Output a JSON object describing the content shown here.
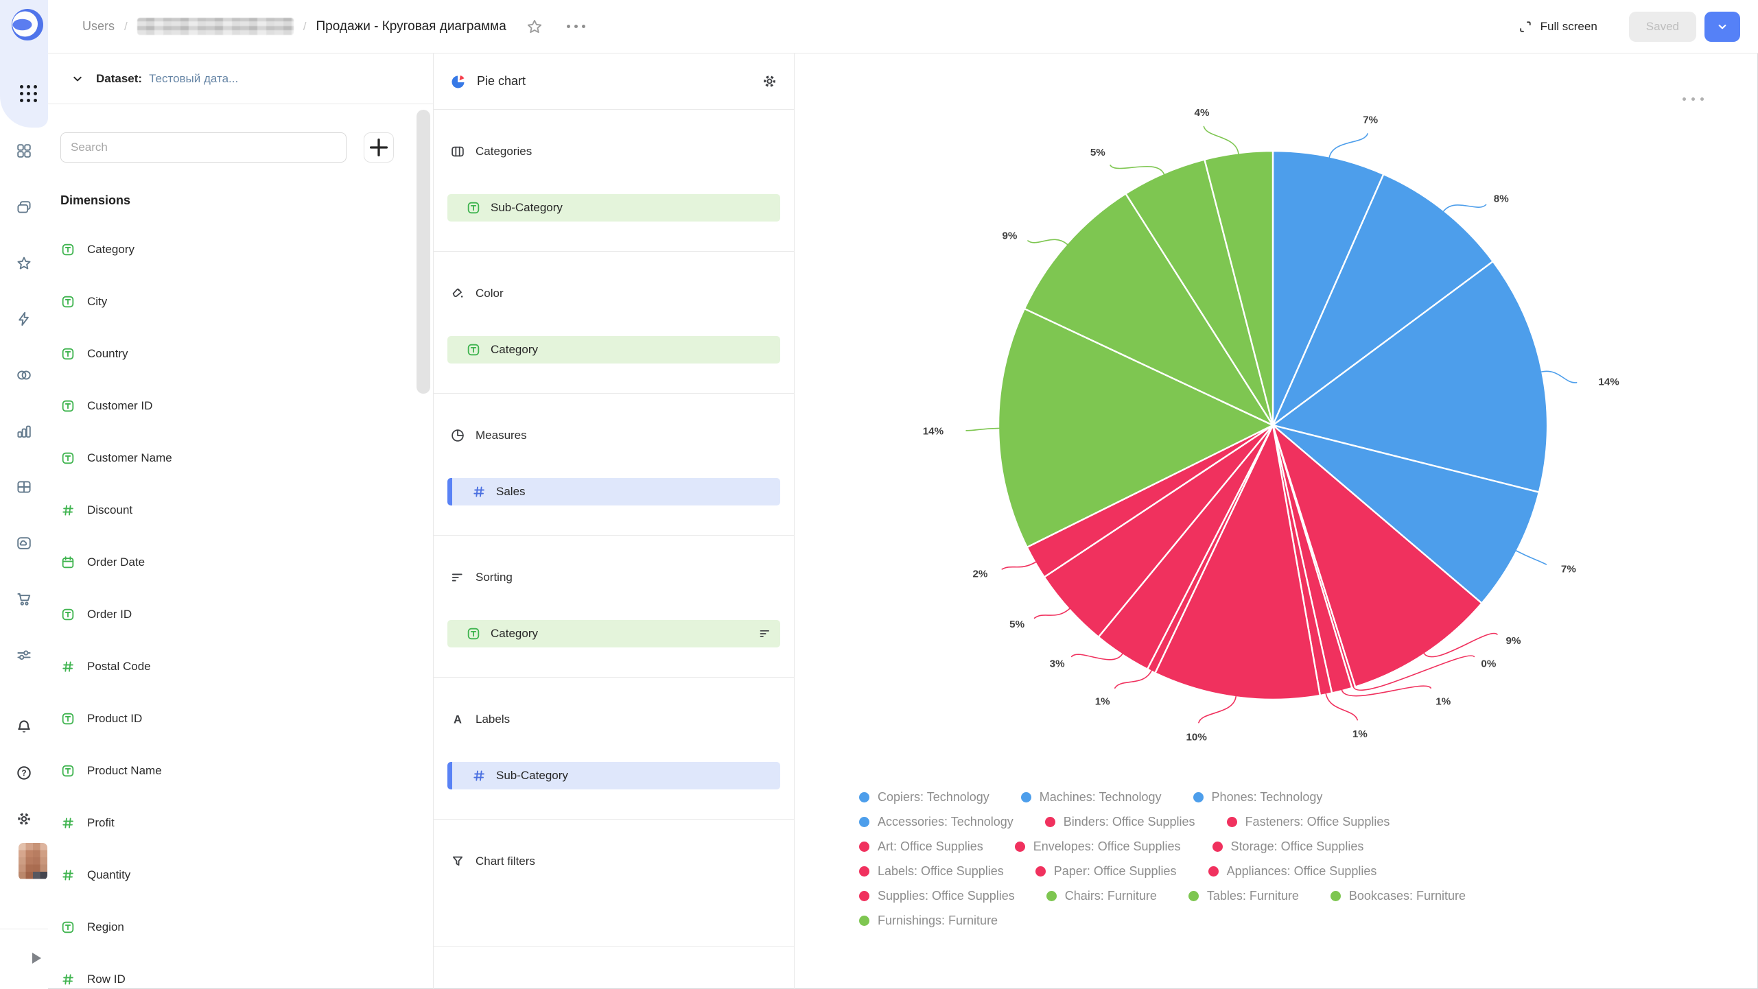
{
  "topbar": {
    "breadcrumb": {
      "root": "Users",
      "separator": "/",
      "hidden_item": "(blurred name)",
      "title": "Продажи - Круговая диаграмма"
    },
    "fullscreen_label": "Full screen",
    "saved_label": "Saved"
  },
  "sidebar": {
    "nav_icons": [
      "grid",
      "folders",
      "star",
      "lightning",
      "datasets",
      "bar-chart",
      "table",
      "folder-cloud",
      "cart",
      "sliders"
    ],
    "bottom_icons": [
      "bell",
      "help",
      "gear"
    ]
  },
  "dataset_panel": {
    "label": "Dataset:",
    "dataset_name": "Тестовый дата...",
    "search_placeholder": "Search",
    "add_button": "+",
    "dimensions_title": "Dimensions",
    "fields": [
      {
        "name": "Category",
        "type": "string"
      },
      {
        "name": "City",
        "type": "string"
      },
      {
        "name": "Country",
        "type": "string"
      },
      {
        "name": "Customer ID",
        "type": "string"
      },
      {
        "name": "Customer Name",
        "type": "string"
      },
      {
        "name": "Discount",
        "type": "number"
      },
      {
        "name": "Order Date",
        "type": "date"
      },
      {
        "name": "Order ID",
        "type": "string"
      },
      {
        "name": "Postal Code",
        "type": "number"
      },
      {
        "name": "Product ID",
        "type": "string"
      },
      {
        "name": "Product Name",
        "type": "string"
      },
      {
        "name": "Profit",
        "type": "number"
      },
      {
        "name": "Quantity",
        "type": "number"
      },
      {
        "name": "Region",
        "type": "string"
      },
      {
        "name": "Row ID",
        "type": "number"
      }
    ]
  },
  "config_panel": {
    "title": "Pie chart",
    "sections": [
      {
        "label": "Categories",
        "icon": "columns",
        "items": [
          {
            "text": "Sub-Category",
            "field_type": "string",
            "style": "dimension"
          }
        ]
      },
      {
        "label": "Color",
        "icon": "paint-bucket",
        "items": [
          {
            "text": "Category",
            "field_type": "string",
            "style": "dimension"
          }
        ]
      },
      {
        "label": "Measures",
        "icon": "pie",
        "items": [
          {
            "text": "Sales",
            "field_type": "number",
            "style": "measure"
          }
        ]
      },
      {
        "label": "Sorting",
        "icon": "sort",
        "items": [
          {
            "text": "Category",
            "field_type": "string",
            "style": "dimension",
            "trailing_icon": "sort"
          }
        ]
      },
      {
        "label": "Labels",
        "icon": "letter-a",
        "items": [
          {
            "text": "Sub-Category",
            "field_type": "number",
            "style": "measure"
          }
        ]
      },
      {
        "label": "Chart filters",
        "icon": "funnel",
        "items": []
      }
    ]
  },
  "chart_area": {
    "menu_icon": "ellipsis",
    "chart_data": {
      "type": "pie",
      "value_field": "Sales",
      "category_colors": {
        "Technology": "#4d9eeb",
        "Office Supplies": "#f0315e",
        "Furniture": "#7ec651"
      },
      "slices": [
        {
          "label": "Copiers",
          "category": "Technology",
          "percent": "7%",
          "value": 6.6,
          "label_angle": 18
        },
        {
          "label": "Machines",
          "category": "Technology",
          "percent": "8%",
          "value": 8.2,
          "label_angle": 44
        },
        {
          "label": "Phones",
          "category": "Technology",
          "percent": "14%",
          "value": 14.1,
          "label_angle": 82
        },
        {
          "label": "Accessories",
          "category": "Technology",
          "percent": "7%",
          "value": 7.3,
          "label_angle": 117
        },
        {
          "label": "Binders",
          "category": "Office Supplies",
          "percent": "9%",
          "value": 8.9,
          "label_angle": 133
        },
        {
          "label": "Fasteners",
          "category": "Office Supplies",
          "percent": "0%",
          "value": 0.2,
          "label_angle": 139
        },
        {
          "label": "Art",
          "category": "Office Supplies",
          "percent": "1%",
          "value": 1.2,
          "label_angle": 149
        },
        {
          "label": "Envelopes",
          "category": "Office Supplies",
          "percent": "1%",
          "value": 0.7,
          "label_angle": 164
        },
        {
          "label": "Storage",
          "category": "Office Supplies",
          "percent": "10%",
          "value": 9.8,
          "label_angle": 194
        },
        {
          "label": "Labels",
          "category": "Office Supplies",
          "percent": "1%",
          "value": 0.5,
          "label_angle": 211
        },
        {
          "label": "Paper",
          "category": "Office Supplies",
          "percent": "3%",
          "value": 3.4,
          "label_angle": 221
        },
        {
          "label": "Appliances",
          "category": "Office Supplies",
          "percent": "5%",
          "value": 4.7,
          "label_angle": 231
        },
        {
          "label": "Supplies",
          "category": "Office Supplies",
          "percent": "2%",
          "value": 2.0,
          "label_angle": 242
        },
        {
          "label": "Chairs",
          "category": "Furniture",
          "percent": "14%",
          "value": 14.3,
          "label_angle": 269
        },
        {
          "label": "Tables",
          "category": "Furniture",
          "percent": "9%",
          "value": 9.0,
          "label_angle": 307
        },
        {
          "label": "Bookcases",
          "category": "Furniture",
          "percent": "5%",
          "value": 5.0,
          "label_angle": 328
        },
        {
          "label": "Furnishings",
          "category": "Furniture",
          "percent": "4%",
          "value": 4.0,
          "label_angle": 347
        }
      ],
      "legend": {
        "position": "bottom",
        "rows": [
          3,
          3,
          3,
          3,
          4,
          1
        ]
      },
      "layout": {
        "start_angle_deg": 0,
        "direction": "clockwise",
        "center": [
          697,
          542
        ],
        "radius": 400,
        "label_radius": 462
      }
    }
  }
}
